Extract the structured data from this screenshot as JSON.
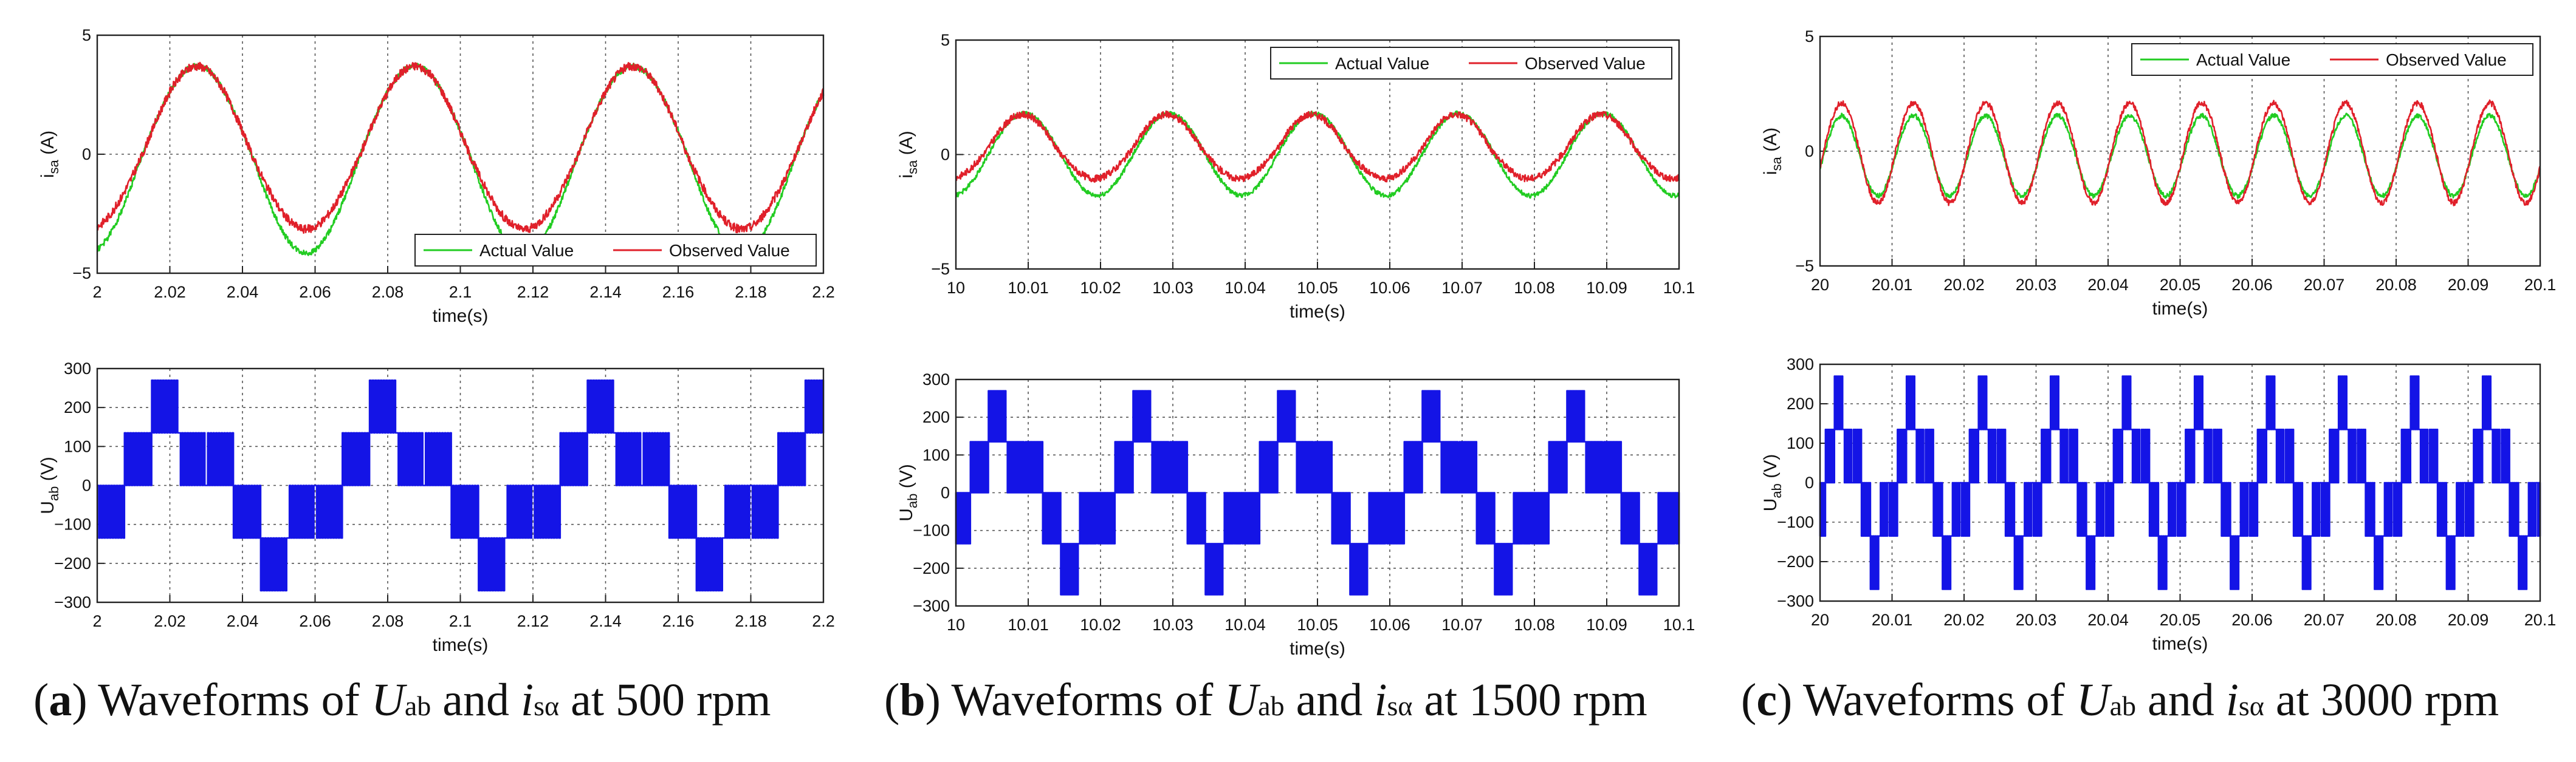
{
  "chart_data": [
    {
      "id": "a-top",
      "type": "line",
      "title": "",
      "xlabel": "time(s)",
      "ylabel_main": "i",
      "ylabel_sub": "sa",
      "ylabel_unit": " (A)",
      "xlim": [
        2,
        2.2
      ],
      "ylim": [
        -5,
        5
      ],
      "xticks": [
        2,
        2.02,
        2.04,
        2.06,
        2.08,
        2.1,
        2.12,
        2.14,
        2.16,
        2.18,
        2.2
      ],
      "xtick_labels": [
        "2",
        "2.02",
        "2.04",
        "2.06",
        "2.08",
        "2.1",
        "2.12",
        "2.14",
        "2.16",
        "2.18",
        "2.2"
      ],
      "yticks": [
        -5,
        0,
        5
      ],
      "ytick_labels": [
        "−5",
        "0",
        "5"
      ],
      "legend_position": "bottom-right",
      "series": [
        {
          "name": "Actual Value",
          "color": "#22cc22",
          "kind": "sine",
          "amplitude": 3.7,
          "offset": 0,
          "period": 0.06,
          "phase_x": 2.0125,
          "neg_extra": 0.45,
          "noise": 0.12
        },
        {
          "name": "Observed Value",
          "color": "#e0202a",
          "kind": "sine",
          "amplitude": 3.7,
          "offset": 0,
          "period": 0.06,
          "phase_x": 2.0125,
          "neg_extra": -0.55,
          "noise": 0.18
        }
      ]
    },
    {
      "id": "a-bot",
      "type": "line",
      "title": "",
      "xlabel": "time(s)",
      "ylabel_main": "U",
      "ylabel_sub": "ab",
      "ylabel_unit": " (V)",
      "xlim": [
        2,
        2.2
      ],
      "ylim": [
        -300,
        300
      ],
      "xticks": [
        2,
        2.02,
        2.04,
        2.06,
        2.08,
        2.1,
        2.12,
        2.14,
        2.16,
        2.18,
        2.2
      ],
      "xtick_labels": [
        "2",
        "2.02",
        "2.04",
        "2.06",
        "2.08",
        "2.1",
        "2.12",
        "2.14",
        "2.16",
        "2.18",
        "2.2"
      ],
      "yticks": [
        -300,
        -200,
        -100,
        0,
        100,
        200,
        300
      ],
      "ytick_labels": [
        "−300",
        "−200",
        "−100",
        "0",
        "100",
        "200",
        "300"
      ],
      "legend_position": "none",
      "series": [
        {
          "name": "Uab",
          "color": "#1414e6",
          "kind": "pwm",
          "period": 0.06,
          "start_x": 2.0,
          "level": 135,
          "peak": 270,
          "pulses_per_seg": 10
        }
      ]
    },
    {
      "id": "b-top",
      "type": "line",
      "title": "",
      "xlabel": "time(s)",
      "ylabel_main": "i",
      "ylabel_sub": "sa",
      "ylabel_unit": " (A)",
      "xlim": [
        10,
        10.1
      ],
      "ylim": [
        -5,
        5
      ],
      "xticks": [
        10,
        10.01,
        10.02,
        10.03,
        10.04,
        10.05,
        10.06,
        10.07,
        10.08,
        10.09,
        10.1
      ],
      "xtick_labels": [
        "10",
        "10.01",
        "10.02",
        "10.03",
        "10.04",
        "10.05",
        "10.06",
        "10.07",
        "10.08",
        "10.09",
        "10.1"
      ],
      "yticks": [
        -5,
        0,
        5
      ],
      "ytick_labels": [
        "−5",
        "0",
        "5"
      ],
      "legend_position": "top-right",
      "series": [
        {
          "name": "Actual Value",
          "color": "#22cc22",
          "kind": "sine",
          "amplitude": 1.8,
          "offset": 0,
          "period": 0.02,
          "phase_x": 10.0045,
          "neg_extra": 0.0,
          "noise": 0.1
        },
        {
          "name": "Observed Value",
          "color": "#e0202a",
          "kind": "sine",
          "amplitude": 1.6,
          "offset": 0.15,
          "period": 0.02,
          "phase_x": 10.0042,
          "neg_extra": -0.4,
          "noise": 0.15
        }
      ]
    },
    {
      "id": "b-bot",
      "type": "line",
      "title": "",
      "xlabel": "time(s)",
      "ylabel_main": "U",
      "ylabel_sub": "ab",
      "ylabel_unit": " (V)",
      "xlim": [
        10,
        10.1
      ],
      "ylim": [
        -300,
        300
      ],
      "xticks": [
        10,
        10.01,
        10.02,
        10.03,
        10.04,
        10.05,
        10.06,
        10.07,
        10.08,
        10.09,
        10.1
      ],
      "xtick_labels": [
        "10",
        "10.01",
        "10.02",
        "10.03",
        "10.04",
        "10.05",
        "10.06",
        "10.07",
        "10.08",
        "10.09",
        "10.1"
      ],
      "yticks": [
        -300,
        -200,
        -100,
        0,
        100,
        200,
        300
      ],
      "ytick_labels": [
        "−300",
        "−200",
        "−100",
        "0",
        "100",
        "200",
        "300"
      ],
      "legend_position": "none",
      "series": [
        {
          "name": "Uab",
          "color": "#1414e6",
          "kind": "pwm",
          "period": 0.02,
          "start_x": 9.9995,
          "level": 135,
          "peak": 270,
          "pulses_per_seg": 12
        }
      ]
    },
    {
      "id": "c-top",
      "type": "line",
      "title": "",
      "xlabel": "time(s)",
      "ylabel_main": "i",
      "ylabel_sub": "sa",
      "ylabel_unit": " (A)",
      "xlim": [
        20,
        20.1
      ],
      "ylim": [
        -5,
        5
      ],
      "xticks": [
        20,
        20.01,
        20.02,
        20.03,
        20.04,
        20.05,
        20.06,
        20.07,
        20.08,
        20.09,
        20.1
      ],
      "xtick_labels": [
        "20",
        "20.01",
        "20.02",
        "20.03",
        "20.04",
        "20.05",
        "20.06",
        "20.07",
        "20.08",
        "20.09",
        "20.1"
      ],
      "yticks": [
        -5,
        0,
        5
      ],
      "ytick_labels": [
        "−5",
        "0",
        "5"
      ],
      "legend_position": "top-right",
      "series": [
        {
          "name": "Actual Value",
          "color": "#22cc22",
          "kind": "sine",
          "amplitude": 1.75,
          "offset": -0.2,
          "period": 0.01,
          "phase_x": 20.0005,
          "neg_extra": 0.0,
          "noise": 0.1
        },
        {
          "name": "Observed Value",
          "color": "#e0202a",
          "kind": "sine",
          "amplitude": 2.1,
          "offset": 0.0,
          "period": 0.01,
          "phase_x": 20.0005,
          "neg_extra": 0.15,
          "noise": 0.12
        }
      ]
    },
    {
      "id": "c-bot",
      "type": "line",
      "title": "",
      "xlabel": "time(s)",
      "ylabel_main": "U",
      "ylabel_sub": "ab",
      "ylabel_unit": " (V)",
      "xlim": [
        20,
        20.1
      ],
      "ylim": [
        -300,
        300
      ],
      "xticks": [
        20,
        20.01,
        20.02,
        20.03,
        20.04,
        20.05,
        20.06,
        20.07,
        20.08,
        20.09,
        20.1
      ],
      "xtick_labels": [
        "20",
        "20.01",
        "20.02",
        "20.03",
        "20.04",
        "20.05",
        "20.06",
        "20.07",
        "20.08",
        "20.09",
        "20.1"
      ],
      "yticks": [
        -300,
        -200,
        -100,
        0,
        100,
        200,
        300
      ],
      "ytick_labels": [
        "−300",
        "−200",
        "−100",
        "0",
        "100",
        "200",
        "300"
      ],
      "legend_position": "none",
      "series": [
        {
          "name": "Uab",
          "color": "#1414e6",
          "kind": "pwm",
          "period": 0.01,
          "start_x": 19.9995,
          "level": 135,
          "peak": 270,
          "pulses_per_seg": 5
        }
      ]
    }
  ],
  "captions": [
    {
      "label": "a",
      "text_before": " Waveforms of ",
      "u": "U",
      "u_sub": "ab",
      "and": " and ",
      "i": "i",
      "i_sub": "sα",
      "text_after": " at 500 rpm"
    },
    {
      "label": "b",
      "text_before": " Waveforms of ",
      "u": "U",
      "u_sub": "ab",
      "and": " and ",
      "i": "i",
      "i_sub": "sα",
      "text_after": " at 1500 rpm"
    },
    {
      "label": "c",
      "text_before": " Waveforms of ",
      "u": "U",
      "u_sub": "ab",
      "and": " and ",
      "i": "i",
      "i_sub": "sα",
      "text_after": " at 3000 rpm"
    }
  ]
}
